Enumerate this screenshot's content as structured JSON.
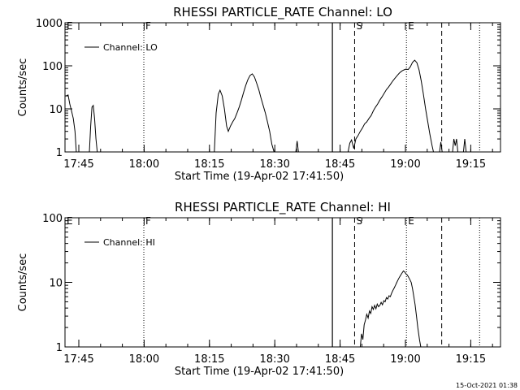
{
  "footer_timestamp": "15-Oct-2021 01:38",
  "chart_data": [
    {
      "type": "line",
      "title": "RHESSI PARTICLE_RATE Channel: LO",
      "xlabel": "Start Time (19-Apr-02 17:41:50)",
      "ylabel": "Counts/sec",
      "yscale": "log",
      "ylim": [
        1,
        1000
      ],
      "xlim_minutes": [
        0,
        100
      ],
      "xticks": [
        {
          "t": 3.17,
          "label": "17:45"
        },
        {
          "t": 18.17,
          "label": "18:00"
        },
        {
          "t": 33.17,
          "label": "18:15"
        },
        {
          "t": 48.17,
          "label": "18:30"
        },
        {
          "t": 63.17,
          "label": "18:45"
        },
        {
          "t": 78.17,
          "label": "19:00"
        },
        {
          "t": 93.17,
          "label": "19:15"
        }
      ],
      "yticks": [
        {
          "v": 1,
          "label": "1"
        },
        {
          "v": 10,
          "label": "10"
        },
        {
          "v": 100,
          "label": "100"
        },
        {
          "v": 1000,
          "label": "1000"
        }
      ],
      "legend": {
        "entry": "Channel: LO",
        "position": "top-left"
      },
      "markers": [
        {
          "t": 18.1,
          "style": "dotted",
          "label": "F"
        },
        {
          "t": 61.4,
          "style": "solid",
          "label": ""
        },
        {
          "t": 66.5,
          "style": "dashed",
          "label": "S"
        },
        {
          "t": 78.4,
          "style": "dotted",
          "label": "E"
        },
        {
          "t": 86.5,
          "style": "dashed",
          "label": ""
        },
        {
          "t": 95.2,
          "style": "dotted",
          "label": ""
        }
      ],
      "corner_label": "E",
      "series": [
        {
          "name": "Channel: LO",
          "segments": [
            [
              [
                0.3,
                20
              ],
              [
                0.7,
                21
              ],
              [
                1.1,
                13
              ],
              [
                1.5,
                9
              ],
              [
                1.9,
                6
              ],
              [
                2.3,
                3
              ],
              [
                2.6,
                1
              ]
            ],
            [
              [
                5.6,
                1
              ],
              [
                5.9,
                4
              ],
              [
                6.2,
                11
              ],
              [
                6.5,
                12
              ],
              [
                6.8,
                6
              ],
              [
                7.1,
                2
              ],
              [
                7.4,
                1
              ]
            ],
            [
              [
                34.3,
                1
              ],
              [
                34.7,
                8
              ],
              [
                35.2,
                22
              ],
              [
                35.6,
                27
              ],
              [
                36.1,
                20
              ],
              [
                36.6,
                10
              ],
              [
                37.1,
                4
              ],
              [
                37.5,
                3
              ],
              [
                38.0,
                4
              ],
              [
                38.5,
                5
              ],
              [
                39.0,
                6
              ],
              [
                39.5,
                8
              ],
              [
                40.0,
                11
              ],
              [
                40.5,
                16
              ],
              [
                41.0,
                24
              ],
              [
                41.5,
                35
              ],
              [
                42.0,
                48
              ],
              [
                42.5,
                60
              ],
              [
                43.0,
                65
              ],
              [
                43.5,
                55
              ],
              [
                44.0,
                40
              ],
              [
                44.5,
                28
              ],
              [
                45.0,
                18
              ],
              [
                45.5,
                12
              ],
              [
                46.0,
                8
              ],
              [
                46.5,
                5
              ],
              [
                47.0,
                3
              ],
              [
                47.5,
                1.5
              ],
              [
                48.0,
                1
              ]
            ],
            [
              [
                53.0,
                1
              ],
              [
                53.3,
                1.8
              ],
              [
                53.6,
                1
              ]
            ],
            [
              [
                65.0,
                1
              ],
              [
                65.4,
                1.6
              ],
              [
                65.8,
                1.9
              ],
              [
                66.3,
                1.2
              ],
              [
                66.8,
                2
              ],
              [
                67.3,
                2.4
              ],
              [
                67.8,
                3
              ],
              [
                68.3,
                3.6
              ],
              [
                68.8,
                4.5
              ],
              [
                69.3,
                5
              ],
              [
                69.8,
                6
              ],
              [
                70.3,
                7
              ],
              [
                70.8,
                9
              ],
              [
                71.3,
                11
              ],
              [
                71.8,
                13
              ],
              [
                72.3,
                16
              ],
              [
                72.8,
                19
              ],
              [
                73.3,
                23
              ],
              [
                73.8,
                28
              ],
              [
                74.3,
                32
              ],
              [
                74.8,
                38
              ],
              [
                75.3,
                45
              ],
              [
                75.8,
                52
              ],
              [
                76.3,
                60
              ],
              [
                76.8,
                68
              ],
              [
                77.3,
                75
              ],
              [
                77.8,
                80
              ],
              [
                78.3,
                84
              ],
              [
                78.8,
                82
              ],
              [
                79.3,
                95
              ],
              [
                79.8,
                120
              ],
              [
                80.3,
                135
              ],
              [
                80.8,
                118
              ],
              [
                81.3,
                80
              ],
              [
                81.8,
                45
              ],
              [
                82.3,
                22
              ],
              [
                82.8,
                10
              ],
              [
                83.3,
                5
              ],
              [
                83.8,
                2.5
              ],
              [
                84.3,
                1.4
              ],
              [
                84.6,
                1
              ]
            ],
            [
              [
                86.0,
                1
              ],
              [
                86.3,
                1.7
              ],
              [
                86.6,
                1
              ]
            ],
            [
              [
                89.0,
                1
              ],
              [
                89.3,
                2
              ],
              [
                89.6,
                1.4
              ],
              [
                89.9,
                2
              ],
              [
                90.2,
                1
              ]
            ],
            [
              [
                91.5,
                1
              ],
              [
                91.8,
                2
              ],
              [
                92.1,
                1
              ]
            ]
          ]
        }
      ]
    },
    {
      "type": "line",
      "title": "RHESSI PARTICLE_RATE Channel: HI",
      "xlabel": "Start Time (19-Apr-02 17:41:50)",
      "ylabel": "Counts/sec",
      "yscale": "log",
      "ylim": [
        1,
        100
      ],
      "xlim_minutes": [
        0,
        100
      ],
      "xticks": [
        {
          "t": 3.17,
          "label": "17:45"
        },
        {
          "t": 18.17,
          "label": "18:00"
        },
        {
          "t": 33.17,
          "label": "18:15"
        },
        {
          "t": 48.17,
          "label": "18:30"
        },
        {
          "t": 63.17,
          "label": "18:45"
        },
        {
          "t": 78.17,
          "label": "19:00"
        },
        {
          "t": 93.17,
          "label": "19:15"
        }
      ],
      "yticks": [
        {
          "v": 1,
          "label": "1"
        },
        {
          "v": 10,
          "label": "10"
        },
        {
          "v": 100,
          "label": "100"
        }
      ],
      "legend": {
        "entry": "Channel: HI",
        "position": "top-left"
      },
      "markers": [
        {
          "t": 18.1,
          "style": "dotted",
          "label": "F"
        },
        {
          "t": 61.4,
          "style": "solid",
          "label": ""
        },
        {
          "t": 66.5,
          "style": "dashed",
          "label": "S"
        },
        {
          "t": 78.4,
          "style": "dotted",
          "label": "E"
        },
        {
          "t": 86.5,
          "style": "dashed",
          "label": ""
        },
        {
          "t": 95.2,
          "style": "dotted",
          "label": ""
        }
      ],
      "corner_label": "E",
      "series": [
        {
          "name": "Channel: HI",
          "segments": [
            [
              [
                67.8,
                1
              ],
              [
                68.1,
                1.6
              ],
              [
                68.4,
                1.3
              ],
              [
                68.7,
                2.2
              ],
              [
                69.0,
                2.6
              ],
              [
                69.3,
                3.2
              ],
              [
                69.6,
                2.8
              ],
              [
                69.9,
                3.6
              ],
              [
                70.2,
                3.3
              ],
              [
                70.5,
                4.2
              ],
              [
                70.8,
                3.8
              ],
              [
                71.1,
                4.4
              ],
              [
                71.4,
                3.9
              ],
              [
                71.7,
                4.6
              ],
              [
                72.0,
                4.2
              ],
              [
                72.3,
                4.4
              ],
              [
                72.6,
                4.9
              ],
              [
                72.9,
                4.5
              ],
              [
                73.2,
                5.2
              ],
              [
                73.5,
                5
              ],
              [
                73.8,
                5.8
              ],
              [
                74.1,
                5.5
              ],
              [
                74.4,
                6.2
              ],
              [
                74.7,
                6
              ],
              [
                75.0,
                6.8
              ],
              [
                75.3,
                7.5
              ],
              [
                75.6,
                8.2
              ],
              [
                75.9,
                9
              ],
              [
                76.2,
                10
              ],
              [
                76.5,
                11
              ],
              [
                76.8,
                12
              ],
              [
                77.1,
                13
              ],
              [
                77.4,
                14
              ],
              [
                77.7,
                15
              ],
              [
                78.0,
                14.5
              ],
              [
                78.3,
                13.5
              ],
              [
                78.6,
                13
              ],
              [
                78.9,
                12
              ],
              [
                79.2,
                11
              ],
              [
                79.5,
                10
              ],
              [
                79.8,
                8
              ],
              [
                80.1,
                6
              ],
              [
                80.4,
                4.5
              ],
              [
                80.7,
                3
              ],
              [
                81.0,
                2
              ],
              [
                81.4,
                1.3
              ],
              [
                81.7,
                1
              ]
            ]
          ]
        }
      ]
    }
  ]
}
